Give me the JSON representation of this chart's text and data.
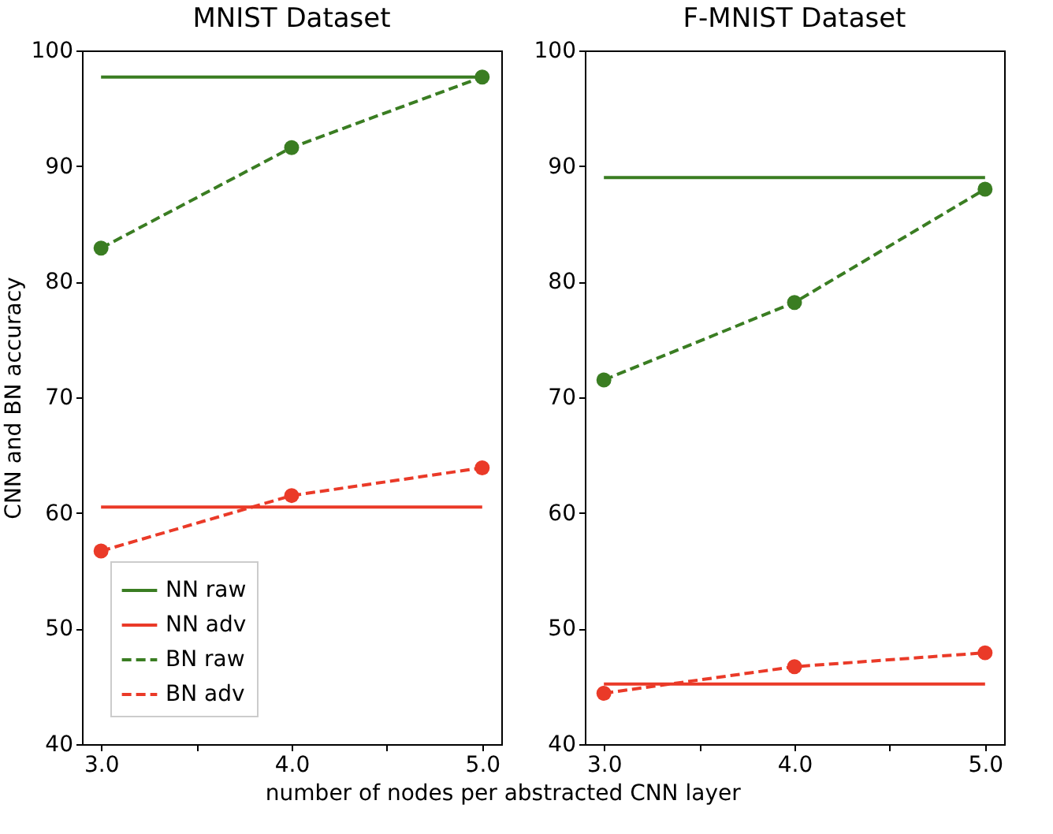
{
  "chart_data": [
    {
      "type": "line",
      "title": "MNIST Dataset",
      "xlabel": "number of nodes per abstracted CNN layer",
      "ylabel": "CNN and BN accuracy",
      "x": [
        3,
        4,
        5
      ],
      "xlim": [
        2.9,
        5.1
      ],
      "xticks": [
        {
          "value": 3,
          "label": "3.0"
        },
        {
          "value": 3.5,
          "label": null
        },
        {
          "value": 4,
          "label": "4.0"
        },
        {
          "value": 4.5,
          "label": null
        },
        {
          "value": 5,
          "label": "5.0"
        }
      ],
      "ylim": [
        40,
        100
      ],
      "yticks": [
        40,
        50,
        60,
        70,
        80,
        90,
        100
      ],
      "grid": false,
      "legend": "bottom left",
      "series": [
        {
          "name": "NN raw",
          "color": "#3a7d22",
          "values": [
            97.7,
            97.7,
            97.7
          ],
          "line_style": "solid",
          "marker": "none"
        },
        {
          "name": "NN adv",
          "color": "#ea3a28",
          "values": [
            60.5,
            60.5,
            60.5
          ],
          "line_style": "solid",
          "marker": "none"
        },
        {
          "name": "BN raw",
          "color": "#3a7d22",
          "values": [
            82.9,
            91.6,
            97.7
          ],
          "line_style": "dashed",
          "marker": "circle"
        },
        {
          "name": "BN adv",
          "color": "#ea3a28",
          "values": [
            56.7,
            61.5,
            63.9
          ],
          "line_style": "dashed",
          "marker": "circle"
        }
      ]
    },
    {
      "type": "line",
      "title": "F-MNIST Dataset",
      "x": [
        3,
        4,
        5
      ],
      "xlim": [
        2.9,
        5.1
      ],
      "xticks": [
        {
          "value": 3,
          "label": "3.0"
        },
        {
          "value": 3.5,
          "label": null
        },
        {
          "value": 4,
          "label": "4.0"
        },
        {
          "value": 4.5,
          "label": null
        },
        {
          "value": 5,
          "label": "5.0"
        }
      ],
      "ylim": [
        40,
        100
      ],
      "yticks": [
        40,
        50,
        60,
        70,
        80,
        90,
        100
      ],
      "grid": false,
      "legend": false,
      "series": [
        {
          "color": "#3a7d22",
          "values": [
            89.0,
            89.0,
            89.0
          ],
          "line_style": "solid",
          "marker": "none"
        },
        {
          "color": "#ea3a28",
          "values": [
            45.2,
            45.2,
            45.2
          ],
          "line_style": "solid",
          "marker": "none"
        },
        {
          "color": "#3a7d22",
          "values": [
            71.5,
            78.2,
            88.0
          ],
          "line_style": "dashed",
          "marker": "circle"
        },
        {
          "color": "#ea3a28",
          "values": [
            44.4,
            46.7,
            47.9
          ],
          "line_style": "dashed",
          "marker": "circle"
        }
      ]
    }
  ]
}
